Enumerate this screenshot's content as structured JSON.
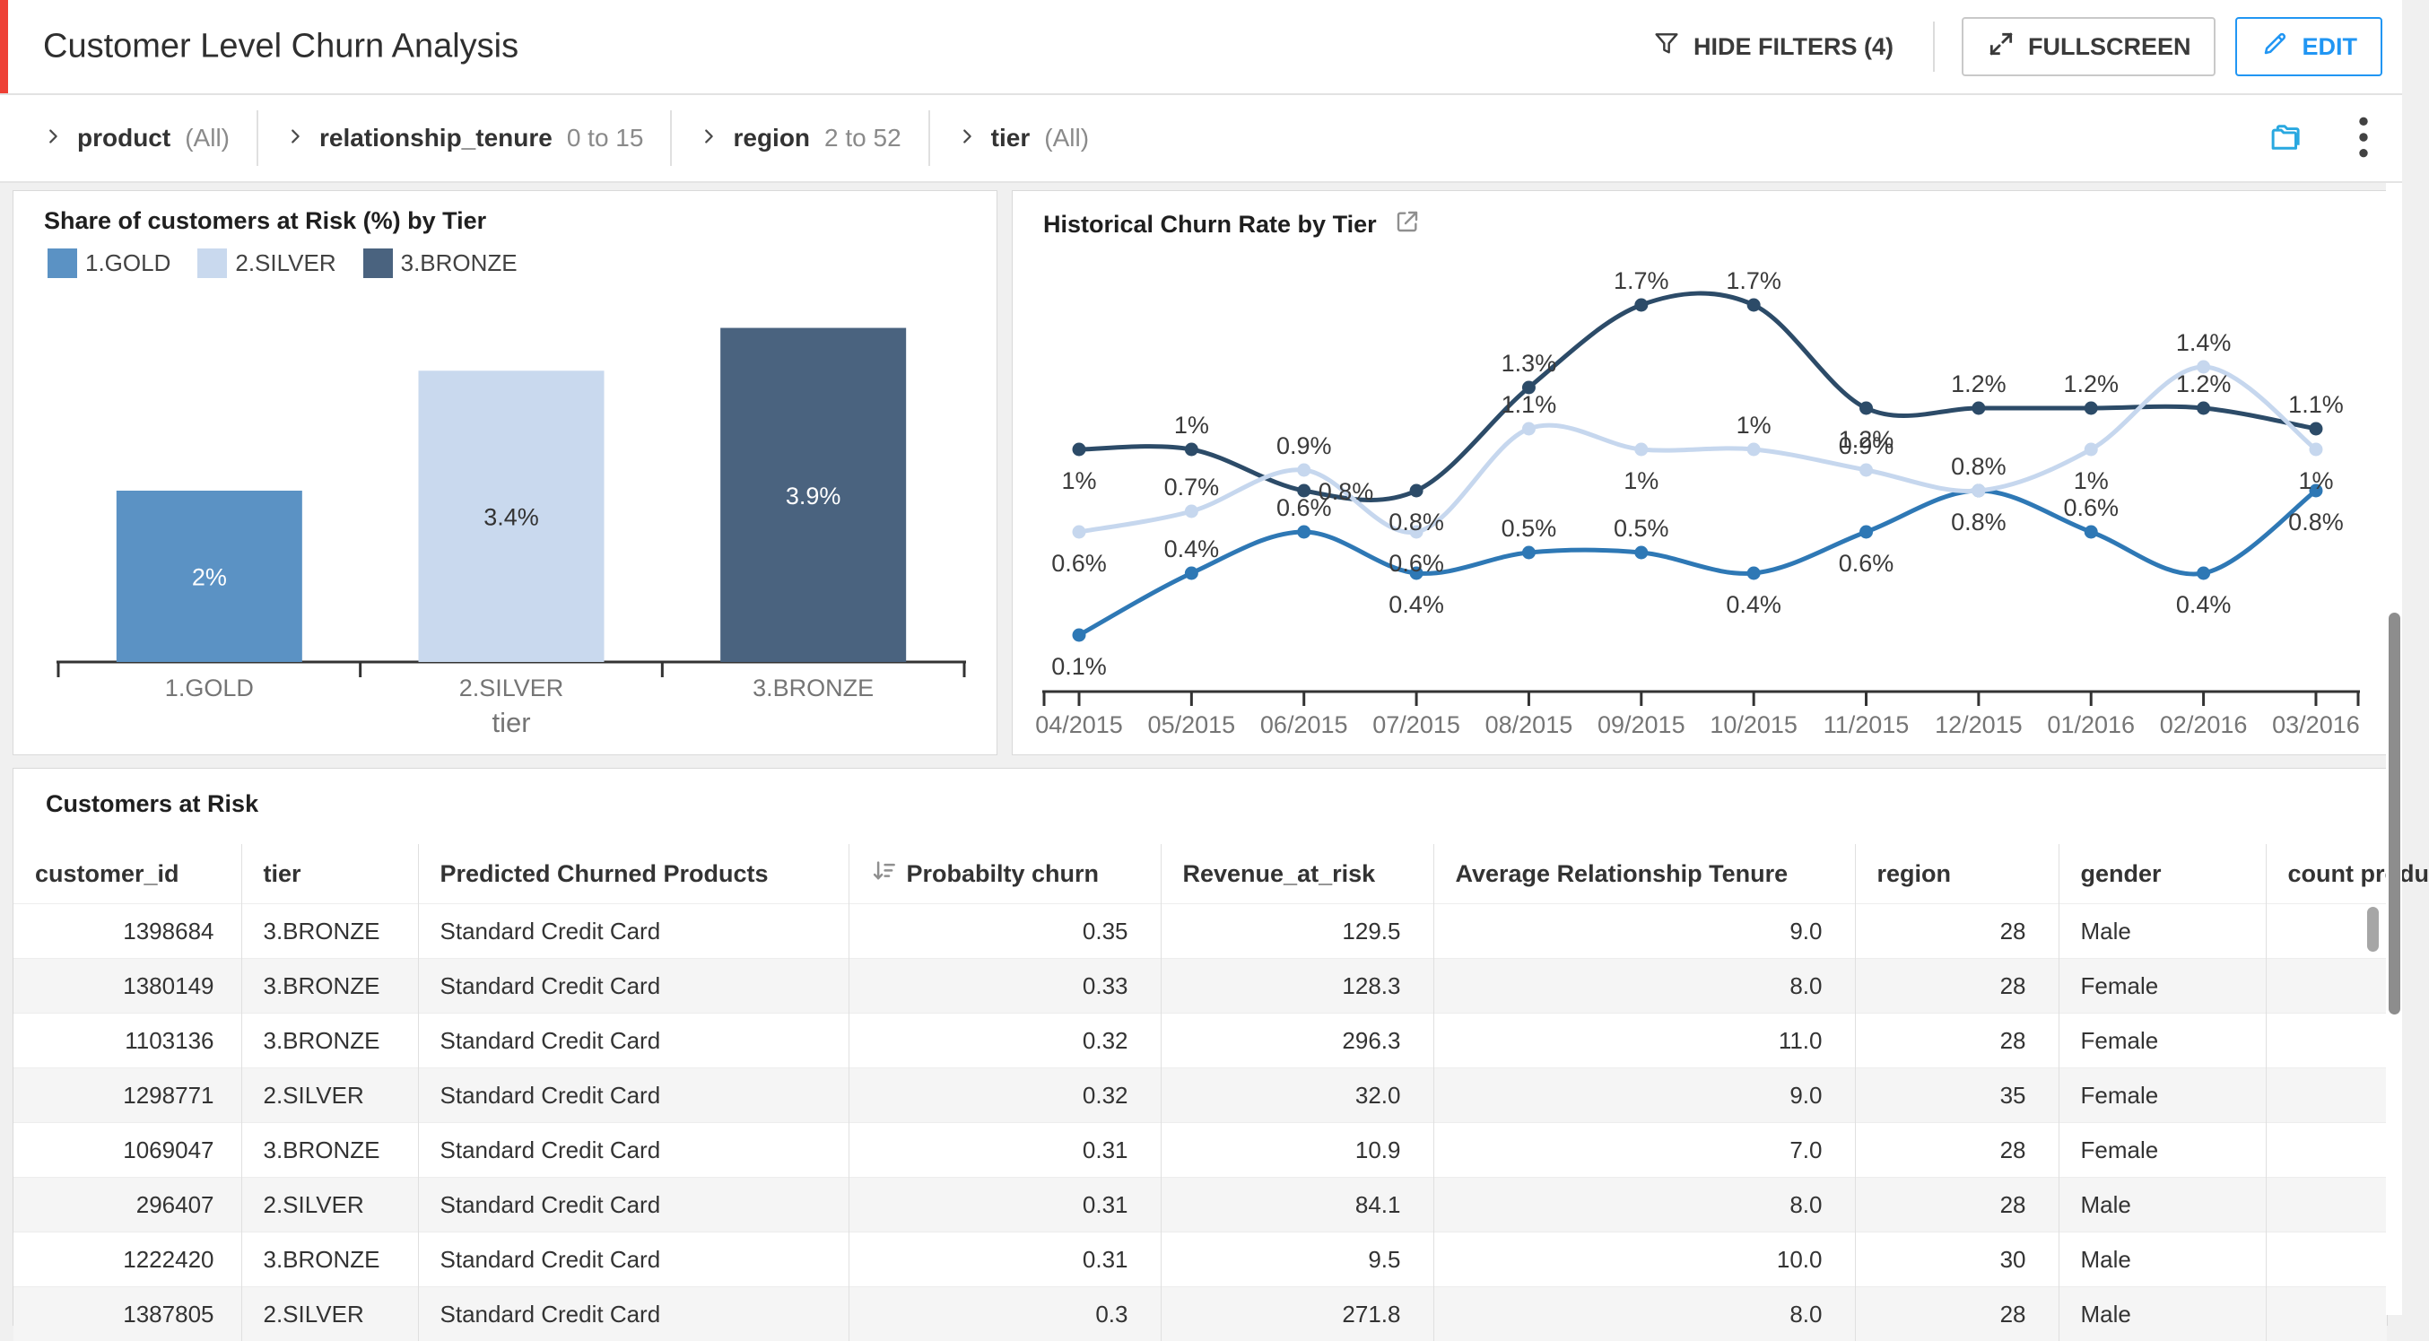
{
  "header": {
    "title": "Customer Level Churn Analysis",
    "actions": {
      "hide_filters": {
        "label": "HIDE FILTERS (4)",
        "icon": "filter-funnel-icon"
      },
      "fullscreen": {
        "label": "FULLSCREEN",
        "icon": "fullscreen-expand-icon"
      },
      "edit": {
        "label": "EDIT",
        "icon": "edit-pencil-icon"
      }
    }
  },
  "filter_bar": {
    "filters": [
      {
        "name": "product",
        "value": "(All)"
      },
      {
        "name": "relationship_tenure",
        "value": "0 to 15"
      },
      {
        "name": "region",
        "value": "2 to 52"
      },
      {
        "name": "tier",
        "value": "(All)"
      }
    ],
    "action_icons": [
      "folder-icon",
      "kebab-menu-icon"
    ]
  },
  "colors": {
    "accent_red": "#ee4035",
    "accent_blue": "#2196f3",
    "folder_blue": "#29a8e0",
    "axis": "#333333",
    "tick_label_gray": "#757575",
    "alt_row": "#f5f5f5"
  },
  "chart_data": [
    {
      "type": "bar",
      "title": "Share of customers at Risk (%) by Tier",
      "categories": [
        "1.GOLD",
        "2.SILVER",
        "3.BRONZE"
      ],
      "values": [
        2,
        3.4,
        3.9
      ],
      "value_labels": [
        "2%",
        "3.4%",
        "3.9%"
      ],
      "bar_colors": [
        "#5b92c4",
        "#c9d9ee",
        "#4a637f"
      ],
      "value_label_colors": [
        "#ffffff",
        "#333333",
        "#ffffff"
      ],
      "xlabel": "tier",
      "ylim": [
        0,
        4.4
      ],
      "grid": false,
      "legend_position": "top",
      "legend": [
        "1.GOLD",
        "2.SILVER",
        "3.BRONZE"
      ]
    },
    {
      "type": "line",
      "title": "Historical Churn Rate by Tier",
      "title_icon": "external-link-icon",
      "x": [
        "04/2015",
        "05/2015",
        "06/2015",
        "07/2015",
        "08/2015",
        "09/2015",
        "10/2015",
        "11/2015",
        "12/2015",
        "01/2016",
        "02/2016",
        "03/2016"
      ],
      "yunit": "%",
      "ylim": [
        0,
        2
      ],
      "grid": false,
      "series": [
        {
          "name": "1.GOLD",
          "color": "#2e78b5",
          "values": [
            0.1,
            0.4,
            0.6,
            0.4,
            0.5,
            0.5,
            0.4,
            0.6,
            0.8,
            0.6,
            0.4,
            0.8
          ],
          "labels": [
            "0.1%",
            "0.4%",
            "0.6%",
            "0.4%",
            "0.5%",
            "0.5%",
            "0.4%",
            "0.6%",
            "0.8%",
            "0.6%",
            "0.4%",
            "0.8%"
          ],
          "label_pos": [
            "below",
            "above",
            "above",
            "below",
            "above",
            "above",
            "below",
            "below",
            "below",
            "above",
            "below",
            "below"
          ]
        },
        {
          "name": "2.SILVER",
          "color": "#c6d7ee",
          "values": [
            0.6,
            0.7,
            0.9,
            0.6,
            1.1,
            1.0,
            1.0,
            0.9,
            0.8,
            1.0,
            1.4,
            1.0
          ],
          "labels": [
            "0.6%",
            "0.7%",
            "0.9%",
            "0.6%",
            "1.1%",
            "1%",
            "1%",
            "0.9%",
            "0.8%",
            "1%",
            "1.4%",
            "1%"
          ],
          "label_pos": [
            "below",
            "above",
            "above",
            "below",
            "above",
            "below",
            "above",
            "above",
            "above",
            "below",
            "above",
            "below"
          ]
        },
        {
          "name": "3.BRONZE",
          "color": "#2c4b68",
          "values": [
            1.0,
            1.0,
            0.8,
            0.8,
            1.3,
            1.7,
            1.7,
            1.2,
            1.2,
            1.2,
            1.2,
            1.1
          ],
          "labels": [
            "1%",
            "1%",
            "0.8%",
            "0.8%",
            "1.3%",
            "1.7%",
            "1.7%",
            "1.2%",
            "1.2%",
            "1.2%",
            "1.2%",
            "1.1%"
          ],
          "label_pos": [
            "below",
            "above",
            "right",
            "below",
            "above",
            "above",
            "above",
            "below",
            "above",
            "above",
            "above",
            "above"
          ]
        }
      ]
    }
  ],
  "table": {
    "title": "Customers at Risk",
    "columns": [
      {
        "label": "customer_id",
        "align": "right"
      },
      {
        "label": "tier",
        "align": "left"
      },
      {
        "label": "Predicted Churned Products",
        "align": "left"
      },
      {
        "label": "Probabilty churn",
        "align": "right",
        "sort": "desc",
        "sort_icon": "sort-desc-icon"
      },
      {
        "label": "Revenue_at_risk",
        "align": "right"
      },
      {
        "label": "Average Relationship Tenure",
        "align": "right"
      },
      {
        "label": "region",
        "align": "right"
      },
      {
        "label": "gender",
        "align": "left"
      },
      {
        "label": "count produ",
        "align": "left"
      }
    ],
    "rows": [
      [
        "1398684",
        "3.BRONZE",
        "Standard Credit Card",
        "0.35",
        "129.5",
        "9.0",
        "28",
        "Male",
        ""
      ],
      [
        "1380149",
        "3.BRONZE",
        "Standard Credit Card",
        "0.33",
        "128.3",
        "8.0",
        "28",
        "Female",
        ""
      ],
      [
        "1103136",
        "3.BRONZE",
        "Standard Credit Card",
        "0.32",
        "296.3",
        "11.0",
        "28",
        "Female",
        ""
      ],
      [
        "1298771",
        "2.SILVER",
        "Standard Credit Card",
        "0.32",
        "32.0",
        "9.0",
        "35",
        "Female",
        ""
      ],
      [
        "1069047",
        "3.BRONZE",
        "Standard Credit Card",
        "0.31",
        "10.9",
        "7.0",
        "28",
        "Female",
        ""
      ],
      [
        "296407",
        "2.SILVER",
        "Standard Credit Card",
        "0.31",
        "84.1",
        "8.0",
        "28",
        "Male",
        ""
      ],
      [
        "1222420",
        "3.BRONZE",
        "Standard Credit Card",
        "0.31",
        "9.5",
        "10.0",
        "30",
        "Male",
        ""
      ],
      [
        "1387805",
        "2.SILVER",
        "Standard Credit Card",
        "0.3",
        "271.8",
        "8.0",
        "28",
        "Male",
        ""
      ]
    ]
  }
}
